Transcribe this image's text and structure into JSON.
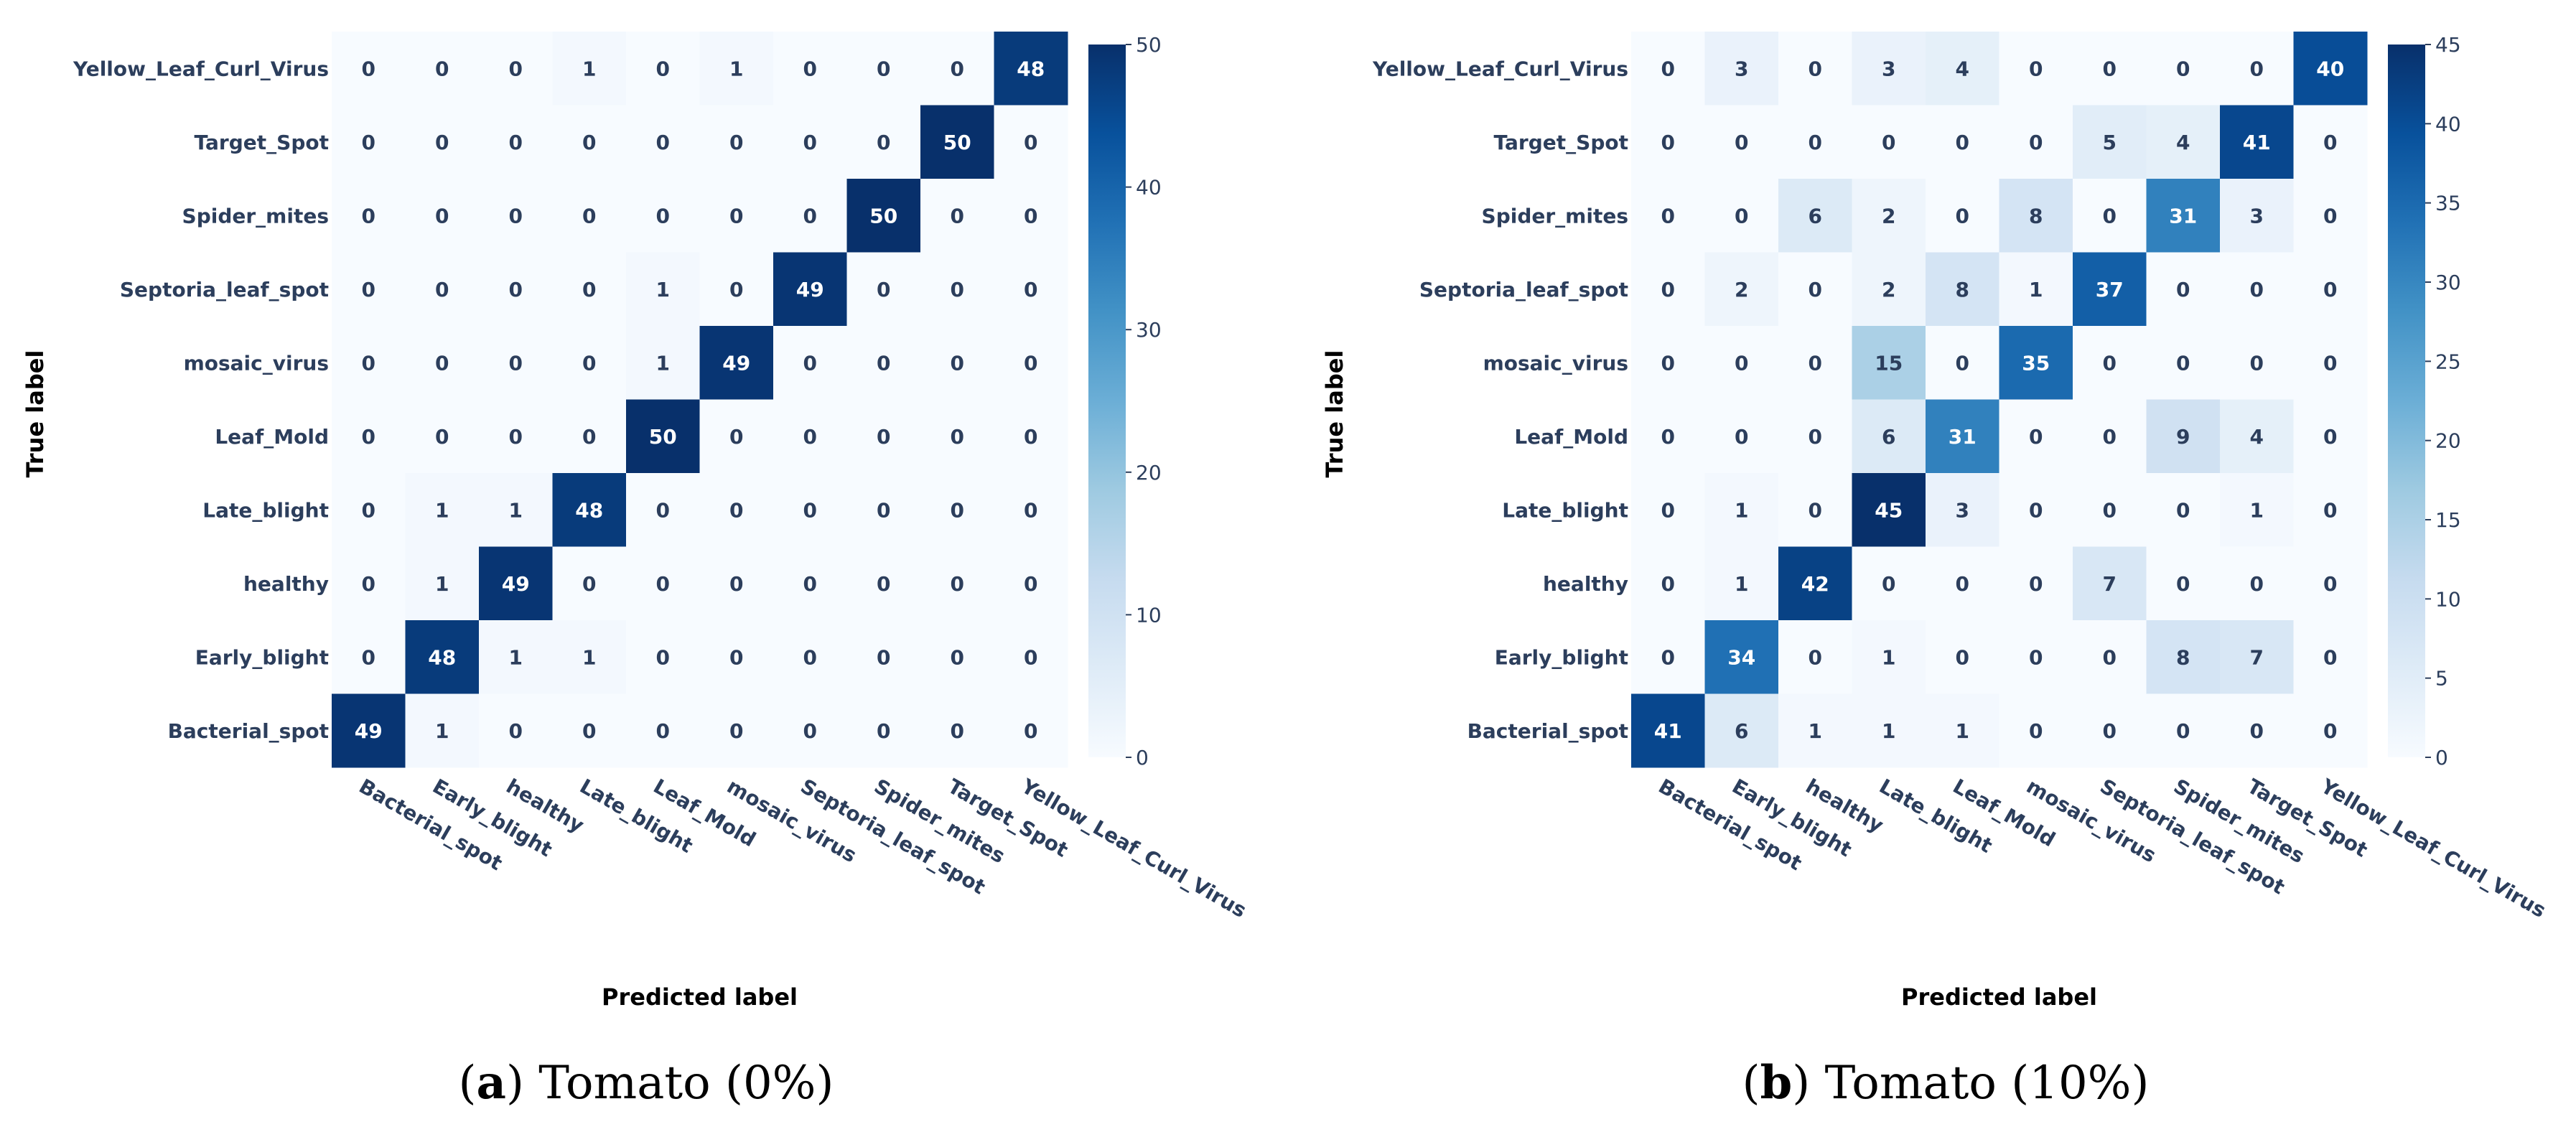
{
  "chart_data": [
    {
      "type": "heatmap",
      "caption_letter": "a",
      "caption_text": "Tomato (0%)",
      "xlabel": "Predicted label",
      "ylabel": "True label",
      "x_categories": [
        "Bacterial_spot",
        "Early_blight",
        "healthy",
        "Late_blight",
        "Leaf_Mold",
        "mosaic_virus",
        "Septoria_leaf_spot",
        "Spider_mites",
        "Target_Spot",
        "Yellow_Leaf_Curl_Virus"
      ],
      "y_categories_top_to_bottom": [
        "Yellow_Leaf_Curl_Virus",
        "Target_Spot",
        "Spider_mites",
        "Septoria_leaf_spot",
        "mosaic_virus",
        "Leaf_Mold",
        "Late_blight",
        "healthy",
        "Early_blight",
        "Bacterial_spot"
      ],
      "matrix": [
        [
          0,
          0,
          0,
          1,
          0,
          1,
          0,
          0,
          0,
          48
        ],
        [
          0,
          0,
          0,
          0,
          0,
          0,
          0,
          0,
          50,
          0
        ],
        [
          0,
          0,
          0,
          0,
          0,
          0,
          0,
          50,
          0,
          0
        ],
        [
          0,
          0,
          0,
          0,
          1,
          0,
          49,
          0,
          0,
          0
        ],
        [
          0,
          0,
          0,
          0,
          1,
          49,
          0,
          0,
          0,
          0
        ],
        [
          0,
          0,
          0,
          0,
          50,
          0,
          0,
          0,
          0,
          0
        ],
        [
          0,
          1,
          1,
          48,
          0,
          0,
          0,
          0,
          0,
          0
        ],
        [
          0,
          1,
          49,
          0,
          0,
          0,
          0,
          0,
          0,
          0
        ],
        [
          0,
          48,
          1,
          1,
          0,
          0,
          0,
          0,
          0,
          0
        ],
        [
          49,
          1,
          0,
          0,
          0,
          0,
          0,
          0,
          0,
          0
        ]
      ],
      "colorbar": {
        "min": 0,
        "max": 50,
        "ticks": [
          0,
          10,
          20,
          30,
          40,
          50
        ],
        "colormap": "Blues"
      }
    },
    {
      "type": "heatmap",
      "caption_letter": "b",
      "caption_text": "Tomato (10%)",
      "xlabel": "Predicted label",
      "ylabel": "True label",
      "x_categories": [
        "Bacterial_spot",
        "Early_blight",
        "healthy",
        "Late_blight",
        "Leaf_Mold",
        "mosaic_virus",
        "Septoria_leaf_spot",
        "Spider_mites",
        "Target_Spot",
        "Yellow_Leaf_Curl_Virus"
      ],
      "y_categories_top_to_bottom": [
        "Yellow_Leaf_Curl_Virus",
        "Target_Spot",
        "Spider_mites",
        "Septoria_leaf_spot",
        "mosaic_virus",
        "Leaf_Mold",
        "Late_blight",
        "healthy",
        "Early_blight",
        "Bacterial_spot"
      ],
      "matrix": [
        [
          0,
          3,
          0,
          3,
          4,
          0,
          0,
          0,
          0,
          40
        ],
        [
          0,
          0,
          0,
          0,
          0,
          0,
          5,
          4,
          41,
          0
        ],
        [
          0,
          0,
          6,
          2,
          0,
          8,
          0,
          31,
          3,
          0
        ],
        [
          0,
          2,
          0,
          2,
          8,
          1,
          37,
          0,
          0,
          0
        ],
        [
          0,
          0,
          0,
          15,
          0,
          35,
          0,
          0,
          0,
          0
        ],
        [
          0,
          0,
          0,
          6,
          31,
          0,
          0,
          9,
          4,
          0
        ],
        [
          0,
          1,
          0,
          45,
          3,
          0,
          0,
          0,
          1,
          0
        ],
        [
          0,
          1,
          42,
          0,
          0,
          0,
          7,
          0,
          0,
          0
        ],
        [
          0,
          34,
          0,
          1,
          0,
          0,
          0,
          8,
          7,
          0
        ],
        [
          41,
          6,
          1,
          1,
          1,
          0,
          0,
          0,
          0,
          0
        ]
      ],
      "colorbar": {
        "min": 0,
        "max": 45,
        "ticks": [
          0,
          5,
          10,
          15,
          20,
          25,
          30,
          35,
          40,
          45
        ],
        "colormap": "Blues"
      }
    }
  ]
}
